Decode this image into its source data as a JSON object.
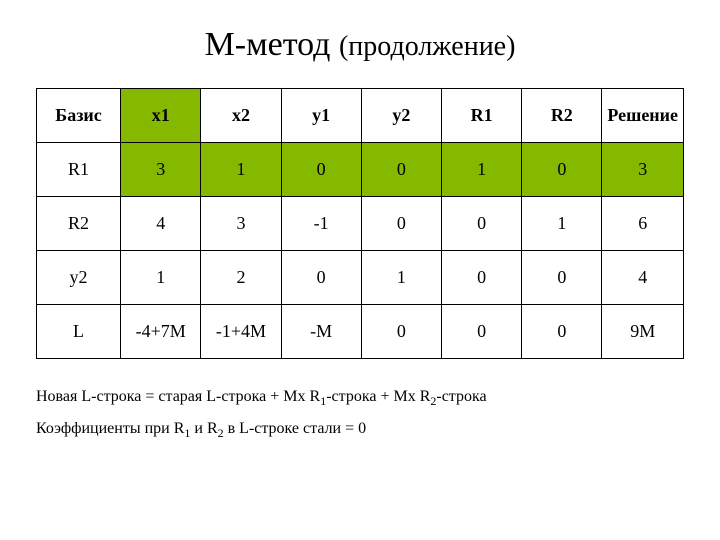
{
  "title_main": "М-метод",
  "title_sub": "(продолжение)",
  "table": {
    "highlight_color": "#85b900",
    "border_color": "#000000",
    "header": {
      "cells": [
        "Базис",
        "x1",
        "x2",
        "y1",
        "y2",
        "R1",
        "R2",
        "Решение"
      ],
      "highlight": [
        false,
        true,
        false,
        false,
        false,
        false,
        false,
        false
      ]
    },
    "rows": [
      {
        "cells": [
          "R1",
          "3",
          "1",
          "0",
          "0",
          "1",
          "0",
          "3"
        ],
        "highlight": [
          false,
          true,
          true,
          true,
          true,
          true,
          true,
          true
        ]
      },
      {
        "cells": [
          "R2",
          "4",
          "3",
          "-1",
          "0",
          "0",
          "1",
          "6"
        ],
        "highlight": [
          false,
          false,
          false,
          false,
          false,
          false,
          false,
          false
        ]
      },
      {
        "cells": [
          "y2",
          "1",
          "2",
          "0",
          "1",
          "0",
          "0",
          "4"
        ],
        "highlight": [
          false,
          false,
          false,
          false,
          false,
          false,
          false,
          false
        ]
      },
      {
        "cells": [
          "L",
          "-4+7M",
          "-1+4M",
          "-M",
          "0",
          "0",
          "0",
          "9M"
        ],
        "highlight": [
          false,
          false,
          false,
          false,
          false,
          false,
          false,
          false
        ]
      }
    ]
  },
  "note1_html": "Новая L-строка = старая L-строка + Мх R<sub>1</sub>-строка + Мх R<sub>2</sub>-строка",
  "note2_html": "Коэффициенты при R<sub>1</sub> и R<sub>2</sub> в L-строке стали = 0"
}
